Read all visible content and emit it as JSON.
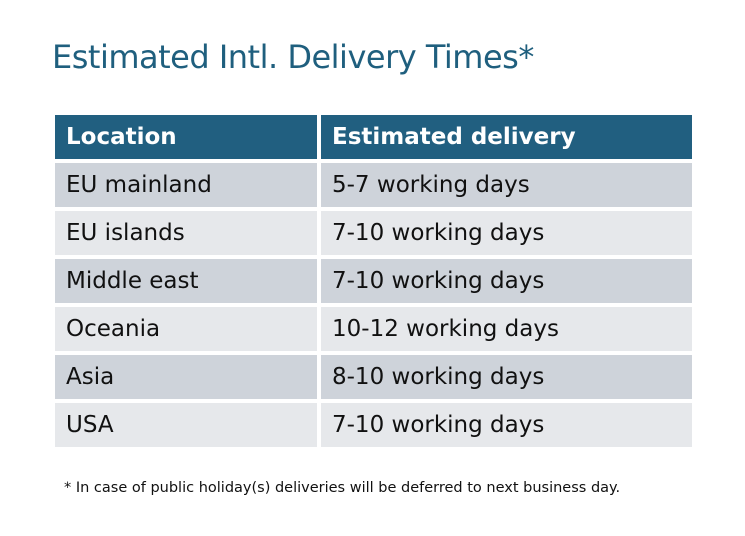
{
  "title": "Estimated Intl. Delivery Times*",
  "table": {
    "headers": [
      "Location",
      "Estimated delivery"
    ],
    "rows": [
      [
        "EU mainland",
        "5-7 working days"
      ],
      [
        "EU islands",
        "7-10 working days"
      ],
      [
        "Middle east",
        "7-10 working days"
      ],
      [
        "Oceania",
        "10-12 working days"
      ],
      [
        "Asia",
        "8-10 working days"
      ],
      [
        "USA",
        "7-10 working days"
      ]
    ]
  },
  "footnote": "* In case of public holiday(s) deliveries will be deferred to next business day.",
  "colors": {
    "header": "#215f80",
    "title": "#1f5f7e",
    "row_dark": "#ced3da",
    "row_light": "#e6e8eb"
  }
}
